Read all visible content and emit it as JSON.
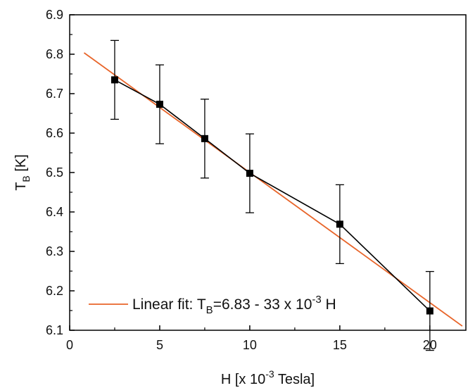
{
  "chart_data": {
    "type": "scatter",
    "x": [
      2.5,
      5,
      7.5,
      10,
      15,
      20
    ],
    "y": [
      6.735,
      6.673,
      6.586,
      6.498,
      6.369,
      6.149
    ],
    "yerr": [
      0.1,
      0.1,
      0.1,
      0.1,
      0.1,
      0.1
    ],
    "xlim": [
      0,
      22
    ],
    "ylim": [
      6.1,
      6.9
    ],
    "x_ticks": [
      "0",
      "5",
      "10",
      "15",
      "20"
    ],
    "x_tick_values": [
      0,
      5,
      10,
      15,
      20
    ],
    "y_ticks": [
      "6.1",
      "6.2",
      "6.3",
      "6.4",
      "6.5",
      "6.6",
      "6.7",
      "6.8",
      "6.9"
    ],
    "y_tick_values": [
      6.1,
      6.2,
      6.3,
      6.4,
      6.5,
      6.6,
      6.7,
      6.8,
      6.9
    ],
    "xlabel": {
      "main": "H [x 10",
      "sup": "-3",
      "tail": " Tesla]"
    },
    "ylabel": {
      "main": "T",
      "sub": "B",
      "tail": " [K]"
    },
    "fit": {
      "intercept": 6.83,
      "slope": -0.033,
      "x_range": [
        0.8,
        21.8
      ],
      "legend": {
        "prefix": "Linear fit:  T",
        "sub": "B",
        "mid": "=6.83 - 33 x 10",
        "sup": "-3",
        "tail": " H"
      }
    },
    "grid": false,
    "legend_position": "bottom-left",
    "colors": {
      "data": "#000000",
      "fit": "#e8652a",
      "axis": "#000000"
    }
  }
}
